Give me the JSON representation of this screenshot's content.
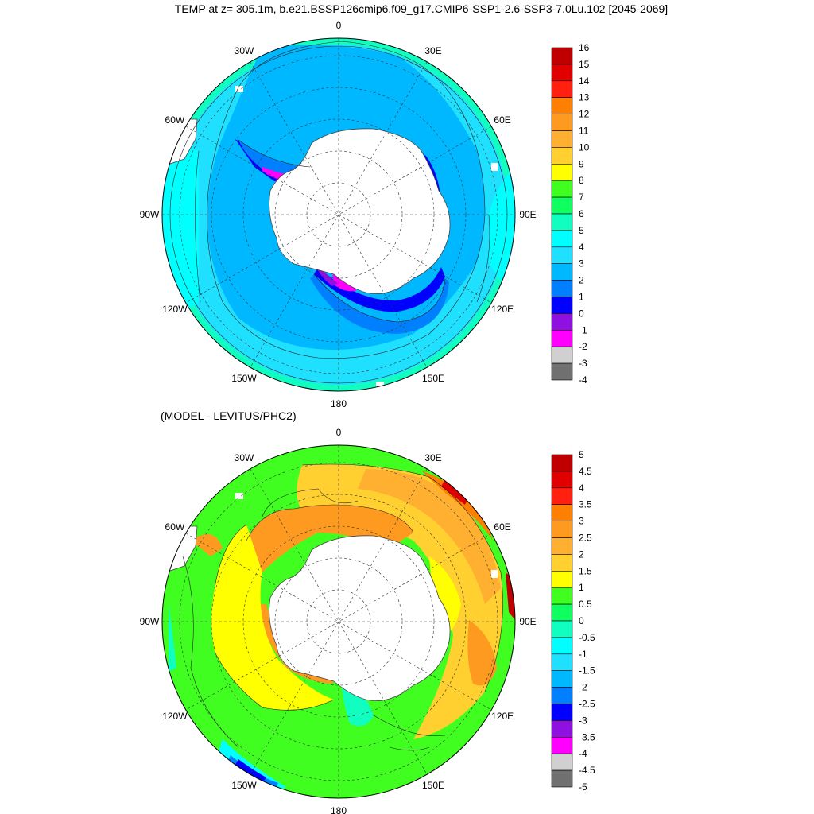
{
  "title": "TEMP at z= 305.1m, b.e21.BSSP126cmip6.f09_g17.CMIP6-SSP1-2.6-SSP3-7.0Lu.102 [2045-2069]",
  "panels": [
    {
      "id": "temp",
      "subtitle": "",
      "lon_labels": [
        "0",
        "30E",
        "60E",
        "90E",
        "120E",
        "150E",
        "180",
        "150W",
        "120W",
        "90W",
        "60W",
        "30W"
      ],
      "colorbar": {
        "labels": [
          "16",
          "15",
          "14",
          "13",
          "12",
          "11",
          "10",
          "9",
          "8",
          "7",
          "6",
          "5",
          "4",
          "3",
          "2",
          "1",
          "0",
          "-1",
          "-2",
          "-3",
          "-4"
        ],
        "colors": [
          "#c00000",
          "#e00000",
          "#ff2010",
          "#ff8000",
          "#ff9a20",
          "#ffb030",
          "#ffd030",
          "#ffff00",
          "#40ff20",
          "#10ff60",
          "#10ffc0",
          "#00ffff",
          "#20e0ff",
          "#00b8ff",
          "#0080ff",
          "#0000ff",
          "#9010e0",
          "#ff00ff",
          "#d0d0d0",
          "#707070"
        ]
      }
    },
    {
      "id": "diff",
      "subtitle": "(MODEL - LEVITUS/PHC2)",
      "lon_labels": [
        "0",
        "30E",
        "60E",
        "90E",
        "120E",
        "150E",
        "180",
        "150W",
        "120W",
        "90W",
        "60W",
        "30W"
      ],
      "colorbar": {
        "labels": [
          "5",
          "4.5",
          "4",
          "3.5",
          "3",
          "2.5",
          "2",
          "1.5",
          "1",
          "0.5",
          "0",
          "-0.5",
          "-1",
          "-1.5",
          "-2",
          "-2.5",
          "-3",
          "-3.5",
          "-4",
          "-4.5",
          "-5"
        ],
        "colors": [
          "#c00000",
          "#e00000",
          "#ff2010",
          "#ff8000",
          "#ff9a20",
          "#ffb030",
          "#ffd030",
          "#ffff00",
          "#40ff20",
          "#10ff60",
          "#10ffc0",
          "#00ffff",
          "#20e0ff",
          "#00b8ff",
          "#0080ff",
          "#0000ff",
          "#9010e0",
          "#ff00ff",
          "#d0d0d0",
          "#707070"
        ]
      }
    }
  ]
}
